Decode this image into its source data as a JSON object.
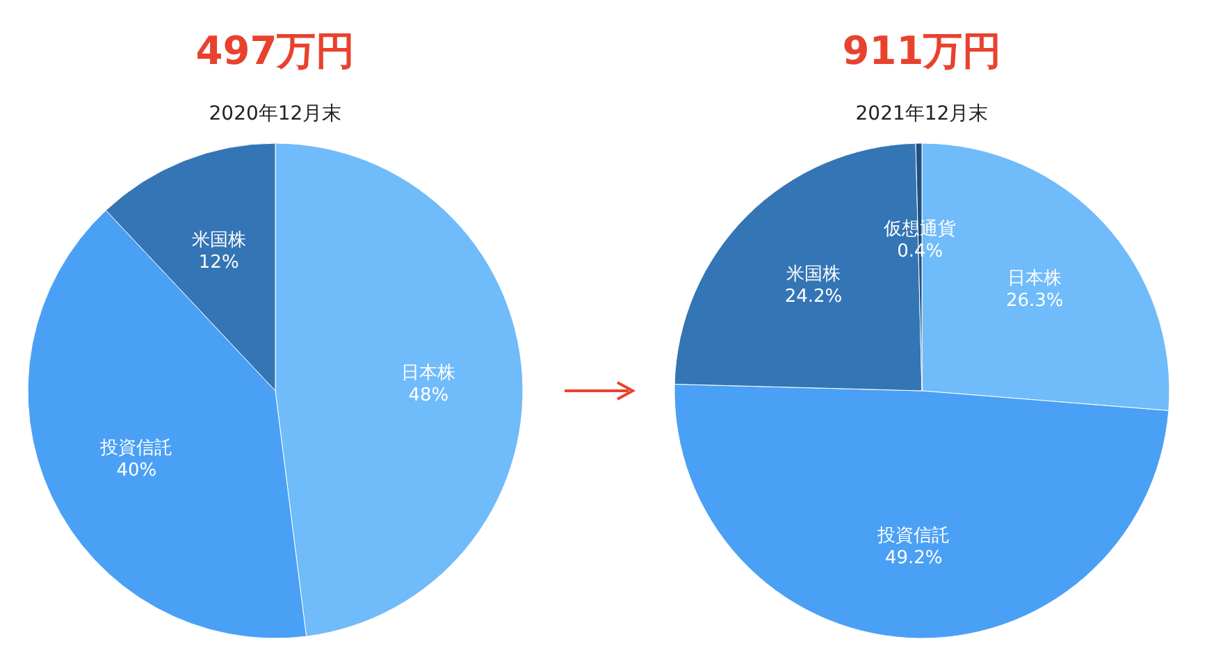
{
  "chart_data": [
    {
      "type": "pie",
      "title": "497万円",
      "subtitle": "2020年12月末",
      "categories": [
        "日本株",
        "投資信託",
        "米国株"
      ],
      "values": [
        48,
        40,
        12
      ],
      "value_labels": [
        "48%",
        "40%",
        "12%"
      ],
      "colors": [
        "#70bbf9",
        "#4aa0f5",
        "#3475b5"
      ]
    },
    {
      "type": "pie",
      "title": "911万円",
      "subtitle": "2021年12月末",
      "categories": [
        "日本株",
        "投資信託",
        "米国株",
        "仮想通貨"
      ],
      "values": [
        26.3,
        49.2,
        24.2,
        0.4
      ],
      "value_labels": [
        "26.3%",
        "49.2%",
        "24.2%",
        "0.4%"
      ],
      "colors": [
        "#70bbf9",
        "#4aa0f5",
        "#3475b5",
        "#1f4f80"
      ]
    }
  ]
}
